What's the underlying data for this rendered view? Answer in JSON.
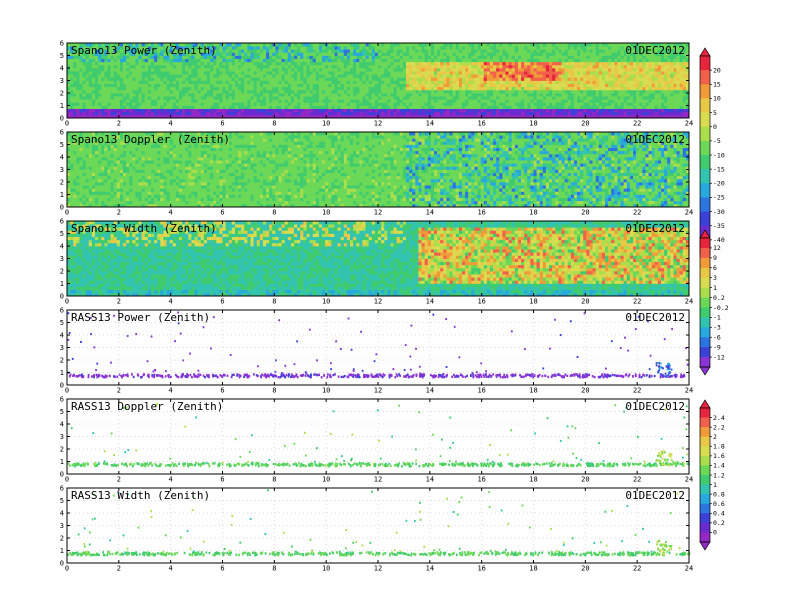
{
  "figure": {
    "panels": [
      {
        "title": "Spano13 Power (Zenith)",
        "date": "01DEC2012",
        "kind": "power",
        "colorbar": 0
      },
      {
        "title": "Spano13 Doppler (Zenith)",
        "date": "01DEC2012",
        "kind": "doppler",
        "colorbar": 0
      },
      {
        "title": "Spano13 Width (Zenith)",
        "date": "01DEC2012",
        "kind": "width",
        "colorbar": 1
      },
      {
        "title": "RASS13 Power (Zenith)",
        "date": "01DEC2012",
        "kind": "rass",
        "colorbar": 1
      },
      {
        "title": "RASS13 Doppler (Zenith)",
        "date": "01DEC2012",
        "kind": "rass",
        "colorbar": 2
      },
      {
        "title": "RASS13 Width (Zenith)",
        "date": "01DEC2012",
        "kind": "rass",
        "colorbar": 2
      }
    ],
    "colorbars": [
      {
        "labels": [
          "20",
          "15",
          "10",
          "5",
          "0",
          "-5",
          "-10",
          "-15",
          "-20",
          "-25",
          "-30",
          "-35",
          "-40"
        ],
        "colors": [
          "#e8243c",
          "#f0604a",
          "#f09a3a",
          "#e8c846",
          "#d8dc50",
          "#aade4c",
          "#6cd858",
          "#40cc6e",
          "#32c4b0",
          "#28a8dc",
          "#2c74e0",
          "#3a40d8",
          "#6a2cd0",
          "#9428c4"
        ]
      },
      {
        "labels": [
          "12",
          "9",
          "6",
          "3",
          "1",
          "0.2",
          "-0.2",
          "-1",
          "-3",
          "-6",
          "-9",
          "-12"
        ],
        "colors": [
          "#e8243c",
          "#f0604a",
          "#f09a3a",
          "#e8c846",
          "#d8dc50",
          "#aade4c",
          "#6cd858",
          "#40cc6e",
          "#32c4b0",
          "#28a8dc",
          "#2c74e0",
          "#3a40d8",
          "#8a34d4"
        ]
      },
      {
        "labels": [
          "2.4",
          "2.2",
          "2",
          "1.8",
          "1.6",
          "1.4",
          "1.2",
          "1",
          "0.8",
          "0.6",
          "0.4",
          "0.2",
          "0"
        ],
        "colors": [
          "#e8243c",
          "#f0604a",
          "#f09a3a",
          "#e8c846",
          "#d8dc50",
          "#aade4c",
          "#6cd858",
          "#40cc6e",
          "#32c4b0",
          "#28a8dc",
          "#2c74e0",
          "#3a40d8",
          "#6a2cd0",
          "#9428c4"
        ]
      }
    ]
  },
  "chart_data": {
    "type": "heatmap",
    "x_ticks": [
      0,
      2,
      4,
      6,
      8,
      10,
      12,
      14,
      16,
      18,
      20,
      22,
      24
    ],
    "y_ticks": [
      0,
      1,
      2,
      3,
      4,
      5,
      6
    ],
    "xlim": [
      0,
      24
    ],
    "ylim": [
      0,
      6
    ],
    "grid": true
  }
}
